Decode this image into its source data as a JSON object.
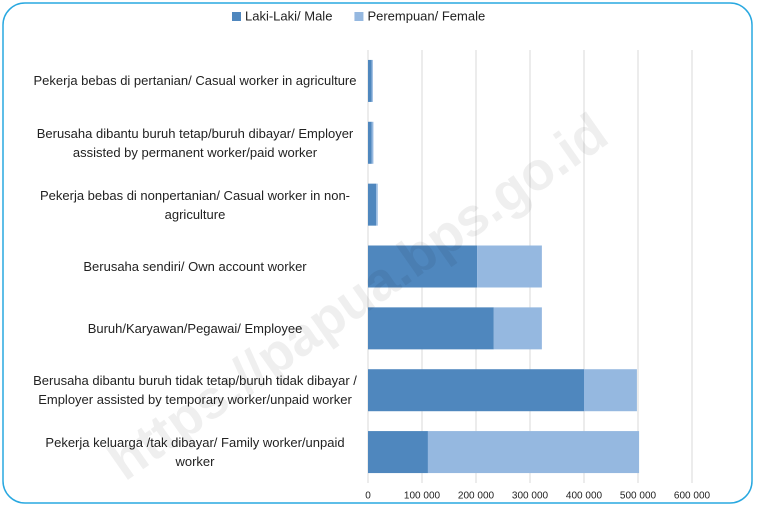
{
  "chart_data": {
    "type": "bar_stacked_horizontal",
    "categories": [
      "Pekerja bebas di pertanian/ Casual worker in agriculture",
      "Berusaha dibantu buruh tetap/buruh dibayar/ Employer assisted by permanent worker/paid worker",
      "Pekerja bebas di nonpertanian/ Casual worker in non-agriculture",
      "Berusaha sendiri/ Own account worker",
      "Buruh/Karyawan/Pegawai/ Employee",
      "Berusaha dibantu buruh tidak tetap/buruh tidak dibayar / Employer assisted by temporary worker/unpaid worker",
      "Pekerja keluarga /tak dibayar/ Family worker/unpaid worker"
    ],
    "series": [
      {
        "name": "Laki-Laki/ Male",
        "color": "#4f87be",
        "values": [
          7000,
          7000,
          15000,
          202000,
          233000,
          400000,
          111000
        ]
      },
      {
        "name": "Perempuan/ Female",
        "color": "#95b8e0",
        "values": [
          2000,
          3000,
          3000,
          120000,
          89000,
          98000,
          391000
        ]
      }
    ],
    "xlim": [
      0,
      600000
    ],
    "xticks": [
      0,
      {
        "value": 100000,
        "label": "100 000"
      },
      {
        "value": 200000,
        "label": "200 000"
      },
      {
        "value": 300000,
        "label": "300 000"
      },
      {
        "value": 400000,
        "label": "400 000"
      },
      {
        "value": 500000,
        "label": "500 000"
      },
      {
        "value": 600000,
        "label": "600 000"
      }
    ],
    "grid": true,
    "legend": "top",
    "watermark": "https://papua.bps.go.id"
  }
}
